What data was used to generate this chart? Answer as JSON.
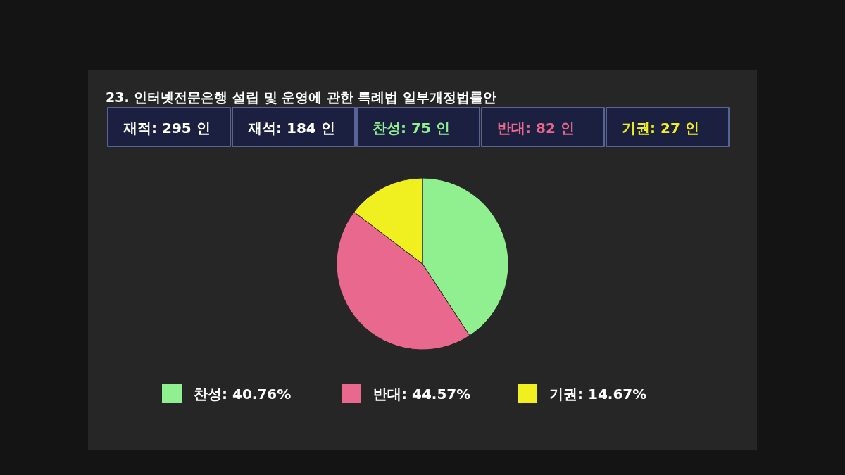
{
  "chart_data": {
    "type": "pie",
    "title": "23. 인터넷전문은행 설립 및 운영에 관한 특례법 일부개정법률안",
    "annotations": [
      "재적: 295 인",
      "재석: 184 인",
      "찬성: 75 인",
      "반대: 82 인",
      "기권: 27 인"
    ],
    "categories": [
      "찬성",
      "반대",
      "기권"
    ],
    "values": [
      40.76,
      44.57,
      14.67
    ],
    "value_labels": [
      "40.76%",
      "44.57%",
      "14.67%"
    ],
    "colors": [
      "#90f090",
      "#e8688e",
      "#f0f020"
    ],
    "legend": "bottom"
  }
}
